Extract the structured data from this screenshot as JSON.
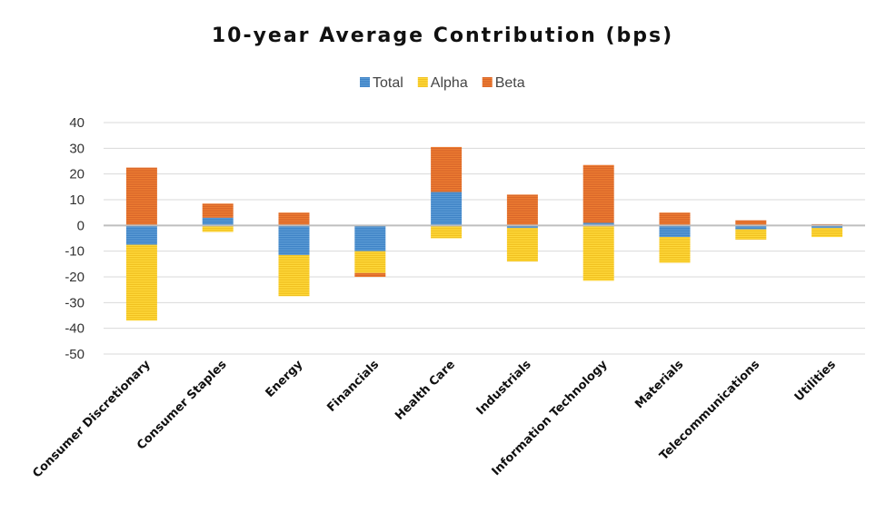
{
  "chart_data": {
    "type": "bar",
    "stacked": true,
    "title": "10-year Average Contribution (bps)",
    "xlabel": "",
    "ylabel": "",
    "ylim": [
      -50,
      40
    ],
    "yticks": [
      40,
      30,
      20,
      10,
      0,
      -10,
      -20,
      -30,
      -40,
      -50
    ],
    "grid": true,
    "legend_position": "top-center",
    "categories": [
      "Consumer Discretionary",
      "Consumer Staples",
      "Energy",
      "Financials",
      "Health Care",
      "Industrials",
      "Information Technology",
      "Materials",
      "Telecommunications",
      "Utilities"
    ],
    "series": [
      {
        "name": "Total",
        "color": "#5b9bd5",
        "stripe": "#3f83c6",
        "values": [
          -7.5,
          3,
          -11.5,
          -10,
          13,
          -1,
          1,
          -4.5,
          -1.5,
          -1
        ]
      },
      {
        "name": "Alpha",
        "color": "#ffd93b",
        "stripe": "#f0c020",
        "values": [
          -29.5,
          -2.5,
          -16,
          -8.5,
          -5,
          -13,
          -21.5,
          -10,
          -4,
          -3.5
        ]
      },
      {
        "name": "Beta",
        "color": "#ed7d31",
        "stripe": "#d9662a",
        "values": [
          22.5,
          5.5,
          5,
          -1.5,
          17.5,
          12,
          22.5,
          5,
          2,
          0.5
        ]
      }
    ]
  }
}
